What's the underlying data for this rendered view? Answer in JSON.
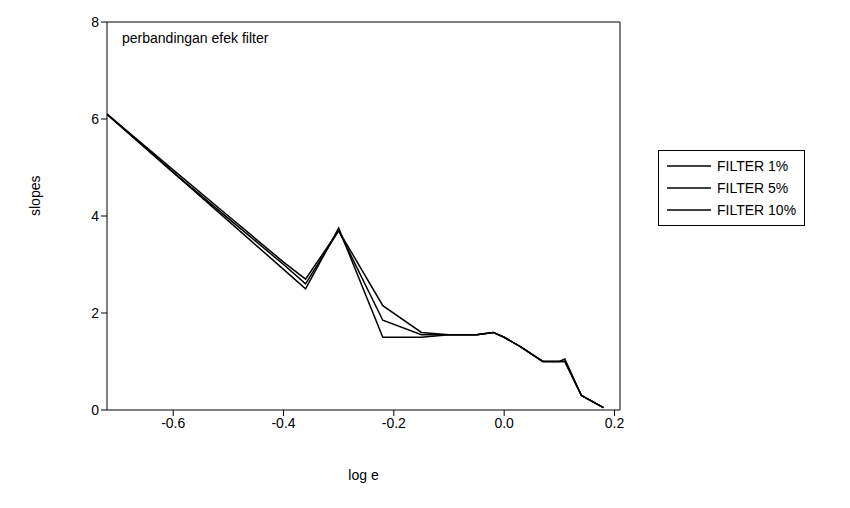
{
  "chart_data": {
    "type": "line",
    "title": "perbandingan efek filter",
    "x_label": "log e",
    "y_label": "slopes",
    "x": [
      -0.72,
      -0.6,
      -0.5,
      -0.4,
      -0.36,
      -0.3,
      -0.22,
      -0.15,
      -0.1,
      -0.05,
      -0.02,
      0.0,
      0.03,
      0.07,
      0.1,
      0.11,
      0.14,
      0.18
    ],
    "series": [
      {
        "name": "FILTER 1%",
        "color": "#000000",
        "values": [
          6.1,
          4.9,
          3.9,
          2.9,
          2.5,
          3.75,
          1.5,
          1.5,
          1.55,
          1.55,
          1.6,
          1.5,
          1.3,
          1.0,
          1.0,
          1.05,
          0.3,
          0.05
        ]
      },
      {
        "name": "FILTER 5%",
        "color": "#000000",
        "values": [
          6.1,
          4.9,
          3.95,
          3.0,
          2.6,
          3.7,
          1.85,
          1.55,
          1.55,
          1.55,
          1.6,
          1.5,
          1.3,
          1.0,
          1.0,
          1.0,
          0.3,
          0.05
        ]
      },
      {
        "name": "FILTER 10%",
        "color": "#000000",
        "values": [
          6.1,
          4.95,
          4.0,
          3.05,
          2.7,
          3.7,
          2.15,
          1.6,
          1.55,
          1.55,
          1.6,
          1.5,
          1.3,
          1.0,
          1.0,
          1.0,
          0.3,
          0.05
        ]
      }
    ],
    "xlim": [
      -0.72,
      0.21
    ],
    "ylim": [
      0,
      8
    ],
    "xticks": [
      -0.6,
      -0.4,
      -0.2,
      {
        "value": 0,
        "label": "0.0"
      },
      0.2
    ],
    "yticks": [
      0,
      2,
      4,
      6,
      8
    ],
    "grid": false,
    "legend": "right"
  }
}
